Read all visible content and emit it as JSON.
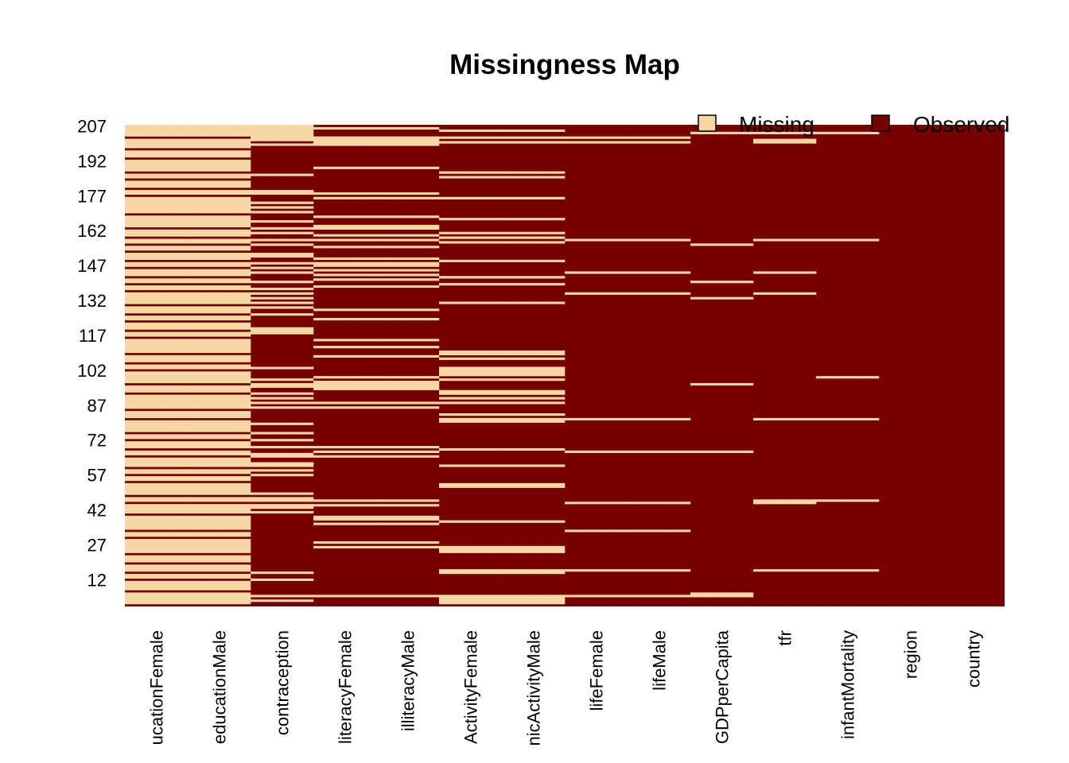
{
  "chart_data": {
    "type": "heatmap",
    "title": "Missingness Map",
    "colors": {
      "missing": "#F5D7A3",
      "observed": "#760000"
    },
    "legend": {
      "placement": "top-right",
      "entries": [
        {
          "label": "Missing",
          "key": "missing"
        },
        {
          "label": "Observed",
          "key": "observed"
        }
      ]
    },
    "n_rows": 207,
    "y_ticks": [
      207,
      192,
      177,
      162,
      147,
      132,
      117,
      102,
      87,
      72,
      57,
      42,
      27,
      12
    ],
    "columns": [
      {
        "label": "ucationFemale",
        "full_name": "educationFemale",
        "missing_rows": [
          2,
          3,
          4,
          5,
          6,
          8,
          9,
          10,
          11,
          13,
          14,
          16,
          17,
          18,
          20,
          21,
          22,
          24,
          25,
          26,
          27,
          28,
          29,
          31,
          32,
          34,
          35,
          36,
          37,
          38,
          39,
          41,
          42,
          43,
          44,
          46,
          47,
          49,
          50,
          51,
          52,
          53,
          55,
          56,
          58,
          59,
          61,
          62,
          63,
          64,
          66,
          67,
          69,
          70,
          71,
          73,
          74,
          76,
          77,
          78,
          79,
          80,
          82,
          83,
          84,
          86,
          87,
          88,
          89,
          90,
          91,
          93,
          94,
          95,
          97,
          98,
          99,
          100,
          101,
          103,
          104,
          106,
          107,
          108,
          110,
          111,
          112,
          113,
          114,
          115,
          117,
          118,
          120,
          121,
          122,
          124,
          125,
          127,
          128,
          129,
          131,
          132,
          133,
          134,
          135,
          137,
          138,
          140,
          141,
          143,
          144,
          145,
          147,
          148,
          150,
          151,
          152,
          154,
          155,
          157,
          158,
          160,
          161,
          162,
          164,
          165,
          166,
          167,
          168,
          170,
          171,
          172,
          173,
          174,
          175,
          176,
          178,
          179,
          181,
          182,
          183,
          185,
          186,
          188,
          189,
          190,
          191,
          192,
          194,
          195,
          196,
          198,
          199,
          200,
          201,
          203,
          204,
          205,
          206,
          207
        ]
      },
      {
        "label": "educationMale",
        "full_name": "educationMale",
        "missing_rows": [
          2,
          3,
          4,
          5,
          6,
          8,
          9,
          10,
          11,
          13,
          14,
          16,
          17,
          18,
          20,
          21,
          22,
          24,
          25,
          26,
          27,
          28,
          29,
          31,
          32,
          34,
          35,
          36,
          37,
          38,
          39,
          41,
          42,
          43,
          44,
          46,
          47,
          49,
          50,
          51,
          52,
          53,
          55,
          56,
          58,
          59,
          61,
          62,
          63,
          64,
          66,
          67,
          69,
          70,
          71,
          73,
          74,
          76,
          77,
          78,
          79,
          80,
          82,
          83,
          84,
          86,
          87,
          88,
          89,
          90,
          91,
          93,
          94,
          95,
          97,
          98,
          99,
          100,
          101,
          103,
          104,
          106,
          107,
          108,
          110,
          111,
          112,
          113,
          114,
          115,
          117,
          118,
          120,
          121,
          122,
          124,
          125,
          127,
          128,
          129,
          131,
          132,
          133,
          134,
          135,
          137,
          138,
          140,
          141,
          143,
          144,
          145,
          147,
          148,
          150,
          151,
          152,
          154,
          155,
          157,
          158,
          160,
          161,
          162,
          164,
          165,
          166,
          167,
          168,
          170,
          171,
          172,
          173,
          174,
          175,
          176,
          178,
          179,
          181,
          182,
          183,
          185,
          186,
          188,
          189,
          190,
          191,
          192,
          194,
          195,
          196,
          198,
          199,
          200,
          201,
          203,
          204,
          205,
          206,
          207
        ]
      },
      {
        "label": "contraception",
        "full_name": "contraception",
        "missing_rows": [
          3,
          5,
          12,
          15,
          41,
          43,
          44,
          46,
          47,
          49,
          57,
          59,
          61,
          62,
          65,
          66,
          69,
          72,
          75,
          79,
          86,
          88,
          90,
          92,
          95,
          96,
          98,
          103,
          118,
          119,
          120,
          126,
          129,
          131,
          133,
          135,
          137,
          140,
          144,
          146,
          148,
          151,
          152,
          156,
          158,
          161,
          163,
          166,
          170,
          172,
          174,
          178,
          179,
          186,
          199,
          201,
          202,
          203,
          204,
          205,
          206,
          207
        ]
      },
      {
        "label": "literacyFemale",
        "full_name": "illiteracyFemale",
        "missing_rows": [
          5,
          26,
          28,
          36,
          38,
          39,
          44,
          46,
          65,
          67,
          69,
          86,
          88,
          94,
          95,
          96,
          97,
          99,
          108,
          112,
          115,
          124,
          128,
          138,
          141,
          143,
          145,
          147,
          148,
          150,
          155,
          158,
          160,
          163,
          164,
          168,
          176,
          178,
          189,
          199,
          200,
          201,
          202,
          206
        ]
      },
      {
        "label": "illiteracyMale",
        "full_name": "illiteracyMale",
        "missing_rows": [
          5,
          26,
          28,
          36,
          38,
          39,
          44,
          46,
          65,
          67,
          69,
          86,
          88,
          94,
          95,
          96,
          97,
          99,
          108,
          112,
          115,
          124,
          128,
          138,
          141,
          143,
          145,
          147,
          148,
          150,
          155,
          158,
          160,
          163,
          164,
          168,
          176,
          178,
          189,
          199,
          200,
          201,
          202,
          206
        ]
      },
      {
        "label": "ActivityFemale",
        "full_name": "economicActivityFemale",
        "missing_rows": [
          2,
          3,
          4,
          5,
          15,
          16,
          24,
          25,
          26,
          37,
          52,
          53,
          61,
          68,
          80,
          81,
          83,
          88,
          90,
          92,
          93,
          98,
          100,
          101,
          102,
          103,
          107,
          109,
          110,
          131,
          139,
          142,
          149,
          157,
          159,
          161,
          167,
          176,
          185,
          187,
          200,
          202,
          205
        ]
      },
      {
        "label": "nicActivityMale",
        "full_name": "economicActivityMale",
        "missing_rows": [
          2,
          3,
          4,
          5,
          15,
          16,
          24,
          25,
          26,
          37,
          52,
          53,
          61,
          68,
          80,
          81,
          83,
          88,
          90,
          92,
          93,
          98,
          100,
          101,
          102,
          103,
          107,
          109,
          110,
          131,
          139,
          142,
          149,
          157,
          159,
          161,
          167,
          176,
          185,
          187,
          200,
          202,
          205
        ]
      },
      {
        "label": "lifeFemale",
        "full_name": "lifeFemale",
        "missing_rows": [
          5,
          16,
          33,
          45,
          67,
          81,
          135,
          144,
          158,
          200,
          202
        ]
      },
      {
        "label": "lifeMale",
        "full_name": "lifeMale",
        "missing_rows": [
          5,
          16,
          33,
          45,
          67,
          81,
          135,
          144,
          158,
          200,
          202
        ]
      },
      {
        "label": "GDPperCapita",
        "full_name": "GDPperCapita",
        "missing_rows": [
          5,
          6,
          67,
          96,
          133,
          140,
          156,
          204
        ]
      },
      {
        "label": "tfr",
        "full_name": "tfr",
        "missing_rows": [
          16,
          45,
          46,
          81,
          135,
          144,
          158,
          200,
          201,
          204
        ]
      },
      {
        "label": "infantMortality",
        "full_name": "infantMortality",
        "missing_rows": [
          16,
          46,
          81,
          99,
          158,
          204
        ]
      },
      {
        "label": "region",
        "full_name": "region",
        "missing_rows": []
      },
      {
        "label": "country",
        "full_name": "country",
        "missing_rows": []
      }
    ]
  }
}
